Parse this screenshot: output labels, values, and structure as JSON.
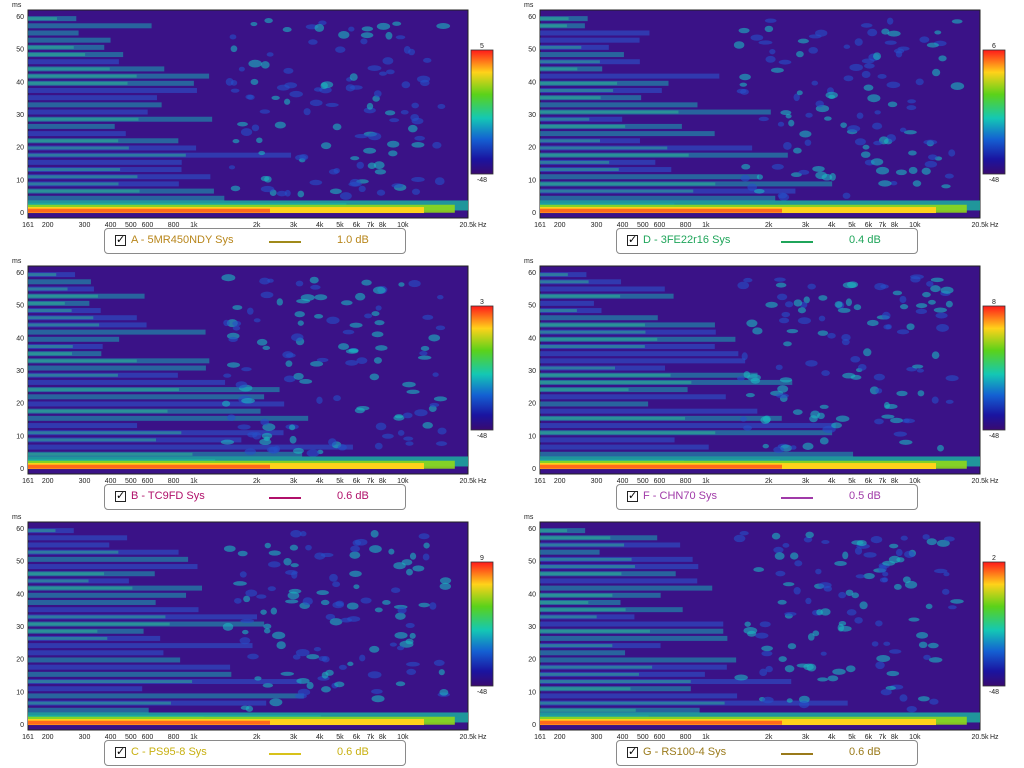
{
  "chart_data": [
    {
      "type": "heatmap",
      "title": "",
      "series_label": "A - 5MR450NDY Sys",
      "smoothing": "1.0 dB",
      "line_color": "#a08a1a",
      "label_color": "#b8861b",
      "xlabel": "Hz",
      "ylabel": "ms",
      "xlim": [
        161,
        20500
      ],
      "x_scale": "log",
      "ylim": [
        0,
        60
      ],
      "x_ticks": [
        "161",
        "200",
        "300",
        "400",
        "500",
        "600",
        "800",
        "1k",
        "2k",
        "3k",
        "4k",
        "5k",
        "6k",
        "7k",
        "8k",
        "10k",
        "20.5k"
      ],
      "y_ticks": [
        "0",
        "10",
        "20",
        "30",
        "40",
        "50",
        "60"
      ],
      "colorbar": {
        "max": "5",
        "min": "-48"
      }
    },
    {
      "type": "heatmap",
      "title": "",
      "series_label": "D - 3FE22r16 Sys",
      "smoothing": "0.4 dB",
      "line_color": "#1fa55a",
      "label_color": "#1fa55a",
      "xlabel": "Hz",
      "ylabel": "ms",
      "xlim": [
        161,
        20500
      ],
      "x_scale": "log",
      "ylim": [
        0,
        60
      ],
      "x_ticks": [
        "161",
        "200",
        "300",
        "400",
        "500",
        "600",
        "800",
        "1k",
        "2k",
        "3k",
        "4k",
        "5k",
        "6k",
        "7k",
        "8k",
        "10k",
        "20.5k"
      ],
      "y_ticks": [
        "0",
        "10",
        "20",
        "30",
        "40",
        "50",
        "60"
      ],
      "colorbar": {
        "max": "6",
        "min": "-48"
      }
    },
    {
      "type": "heatmap",
      "title": "",
      "series_label": "B - TC9FD Sys",
      "smoothing": "0.6 dB",
      "line_color": "#b0106a",
      "label_color": "#b0106a",
      "xlabel": "Hz",
      "ylabel": "ms",
      "xlim": [
        161,
        20500
      ],
      "x_scale": "log",
      "ylim": [
        0,
        60
      ],
      "x_ticks": [
        "161",
        "200",
        "300",
        "400",
        "500",
        "600",
        "800",
        "1k",
        "2k",
        "3k",
        "4k",
        "5k",
        "6k",
        "7k",
        "8k",
        "10k",
        "20.5k"
      ],
      "y_ticks": [
        "0",
        "10",
        "20",
        "30",
        "40",
        "50",
        "60"
      ],
      "colorbar": {
        "max": "3",
        "min": "-48"
      }
    },
    {
      "type": "heatmap",
      "title": "",
      "series_label": "F - CHN70 Sys",
      "smoothing": "0.5 dB",
      "line_color": "#a03aa8",
      "label_color": "#a03aa8",
      "xlabel": "Hz",
      "ylabel": "ms",
      "xlim": [
        161,
        20500
      ],
      "x_scale": "log",
      "ylim": [
        0,
        60
      ],
      "x_ticks": [
        "161",
        "200",
        "300",
        "400",
        "500",
        "600",
        "800",
        "1k",
        "2k",
        "3k",
        "4k",
        "5k",
        "6k",
        "7k",
        "8k",
        "10k",
        "20.5k"
      ],
      "y_ticks": [
        "0",
        "10",
        "20",
        "30",
        "40",
        "50",
        "60"
      ],
      "colorbar": {
        "max": "8",
        "min": "-48"
      }
    },
    {
      "type": "heatmap",
      "title": "",
      "series_label": "C - PS95-8 Sys",
      "smoothing": "0.6 dB",
      "line_color": "#d8c21a",
      "label_color": "#c8b010",
      "xlabel": "Hz",
      "ylabel": "ms",
      "xlim": [
        161,
        20500
      ],
      "x_scale": "log",
      "ylim": [
        0,
        60
      ],
      "x_ticks": [
        "161",
        "200",
        "300",
        "400",
        "500",
        "600",
        "800",
        "1k",
        "2k",
        "3k",
        "4k",
        "5k",
        "6k",
        "7k",
        "8k",
        "10k",
        "20.5k"
      ],
      "y_ticks": [
        "0",
        "10",
        "20",
        "30",
        "40",
        "50",
        "60"
      ],
      "colorbar": {
        "max": "9",
        "min": "-48"
      }
    },
    {
      "type": "heatmap",
      "title": "",
      "series_label": "G - RS100-4 Sys",
      "smoothing": "0.6 dB",
      "line_color": "#9a7a1a",
      "label_color": "#9a7a1a",
      "xlabel": "Hz",
      "ylabel": "ms",
      "xlim": [
        161,
        20500
      ],
      "x_scale": "log",
      "ylim": [
        0,
        60
      ],
      "x_ticks": [
        "161",
        "200",
        "300",
        "400",
        "500",
        "600",
        "800",
        "1k",
        "2k",
        "3k",
        "4k",
        "5k",
        "6k",
        "7k",
        "8k",
        "10k",
        "20.5k"
      ],
      "y_ticks": [
        "0",
        "10",
        "20",
        "30",
        "40",
        "50",
        "60"
      ],
      "colorbar": {
        "max": "2",
        "min": "-48"
      }
    }
  ]
}
